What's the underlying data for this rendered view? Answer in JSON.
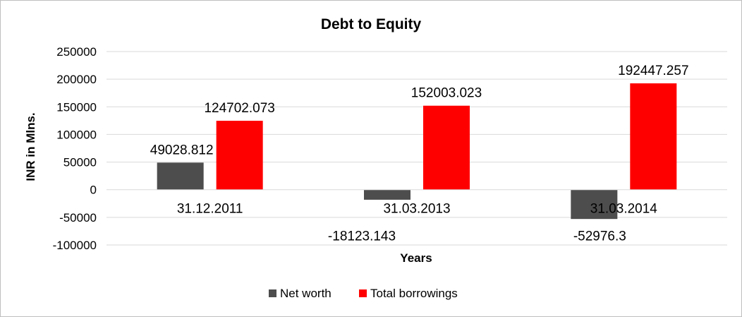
{
  "chart_data": {
    "type": "bar",
    "title": "Debt to Equity",
    "xlabel": "Years",
    "ylabel": "INR in Mlns.",
    "categories": [
      "31.12.2011",
      "31.03.2013",
      "31.03.2014"
    ],
    "series": [
      {
        "name": "Net worth",
        "color": "#4d4d4d",
        "values": [
          49028.812,
          -18123.143,
          -52976.3
        ],
        "labels": [
          "49028.812",
          "-18123.143",
          "-52976.3"
        ]
      },
      {
        "name": "Total borrowings",
        "color": "#ff0000",
        "values": [
          124702.073,
          152003.023,
          192447.257
        ],
        "labels": [
          "124702.073",
          "152003.023",
          "192447.257"
        ]
      }
    ],
    "ylim": [
      -100000,
      250000
    ],
    "yticks": [
      250000,
      200000,
      150000,
      100000,
      50000,
      0,
      -50000,
      -100000
    ],
    "ytick_labels": [
      "250000",
      "200000",
      "150000",
      "100000",
      "50000",
      "0",
      "-50000",
      "-100000"
    ],
    "grid": true,
    "gridline_color": "#d9d9d9",
    "legend_position": "bottom"
  }
}
